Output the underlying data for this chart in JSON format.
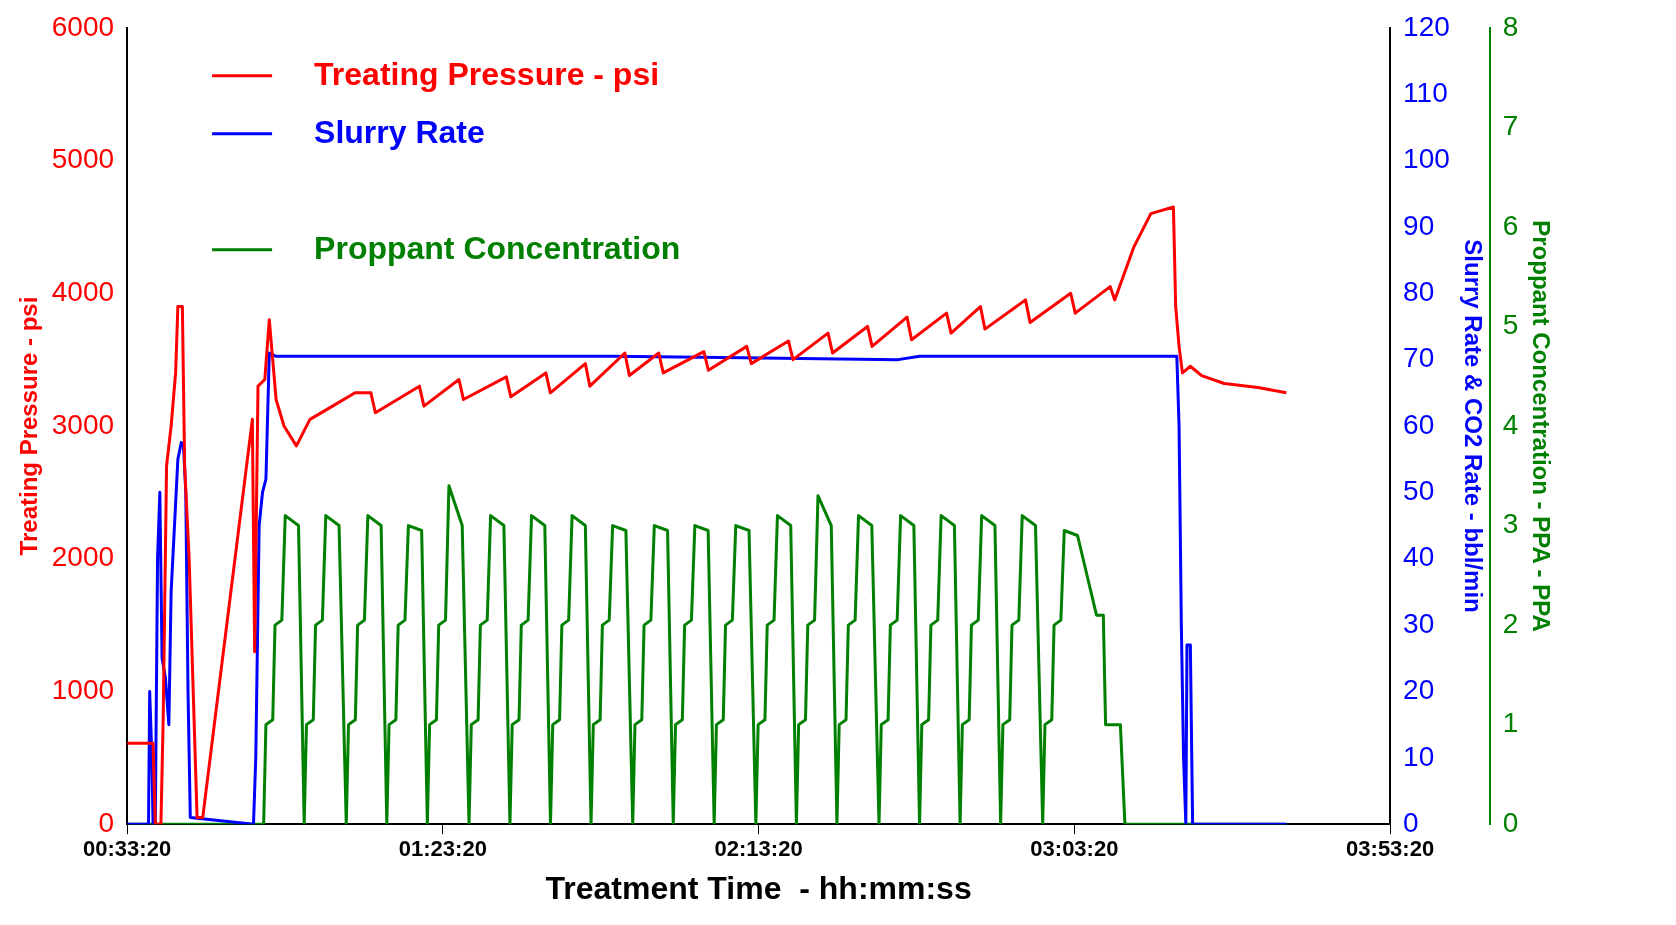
{
  "chart_data": {
    "type": "line",
    "xlabel": "Treatment Time  - hh:mm:ss",
    "ylabel": "Treating Pressure - psi",
    "y2label": "Slurry Rate & CO2 Rate - bbl/min",
    "y3label": "Proppant Concentration - PPA - PPA",
    "xlim": [
      0.5556,
      3.8889
    ],
    "xticks": [
      {
        "value": 0.5556,
        "label": "00:33:20"
      },
      {
        "value": 1.3889,
        "label": "01:23:20"
      },
      {
        "value": 2.2222,
        "label": "02:13:20"
      },
      {
        "value": 3.0556,
        "label": "03:03:20"
      },
      {
        "value": 3.8889,
        "label": "03:53:20"
      }
    ],
    "ylim": [
      0,
      6000
    ],
    "yticks": [
      0,
      1000,
      2000,
      3000,
      4000,
      5000,
      6000
    ],
    "y2lim": [
      0,
      120
    ],
    "y2ticks": [
      0,
      10,
      20,
      30,
      40,
      50,
      60,
      70,
      80,
      90,
      100,
      110,
      120
    ],
    "y3lim": [
      0,
      8
    ],
    "y3ticks": [
      0,
      1,
      2,
      3,
      4,
      5,
      6,
      7,
      8
    ],
    "grid": false,
    "legend": "top left",
    "line_style": "solid",
    "series": [
      {
        "name": "Treating Pressure - psi",
        "color": "#ff0000",
        "axis": "y",
        "x": [
          0.556,
          0.6241,
          0.63,
          0.6449,
          0.6509,
          0.6598,
          0.6718,
          0.6837,
          0.6896,
          0.7015,
          0.7075,
          0.7194,
          0.7403,
          0.7552,
          0.8862,
          0.8922,
          0.9011,
          0.919,
          0.9309,
          0.9399,
          0.9488,
          0.9697,
          1.0024,
          1.0382,
          1.0978,
          1.1573,
          1.199,
          1.2109,
          1.3271,
          1.339,
          1.4314,
          1.4433,
          1.5565,
          1.5684,
          1.6608,
          1.6727,
          1.765,
          1.7769,
          1.8693,
          1.8812,
          1.9587,
          1.9706,
          2.0778,
          2.0897,
          2.191,
          2.2029,
          2.3012,
          2.3131,
          2.4055,
          2.4174,
          2.5098,
          2.5217,
          2.614,
          2.6259,
          2.7183,
          2.7302,
          2.8077,
          2.8196,
          2.9268,
          2.9387,
          3.0459,
          3.0578,
          3.1502,
          3.1621,
          3.2128,
          3.2575,
          3.317,
          3.323,
          3.3319,
          3.3408,
          3.3617,
          3.3915,
          3.4511,
          3.5405,
          3.615
        ],
        "values": [
          610,
          610,
          0,
          0,
          800,
          2700,
          3000,
          3400,
          3900,
          3900,
          2700,
          2000,
          50,
          50,
          3050,
          1300,
          3300,
          3350,
          3800,
          3500,
          3200,
          3000,
          2850,
          3050,
          3150,
          3250,
          3250,
          3100,
          3300,
          3150,
          3350,
          3200,
          3370,
          3220,
          3400,
          3250,
          3470,
          3300,
          3550,
          3380,
          3550,
          3400,
          3560,
          3420,
          3600,
          3470,
          3640,
          3500,
          3700,
          3550,
          3750,
          3600,
          3820,
          3650,
          3850,
          3700,
          3900,
          3730,
          3950,
          3780,
          4000,
          3850,
          4050,
          3950,
          4350,
          4600,
          4650,
          3900,
          3600,
          3400,
          3450,
          3380,
          3320,
          3290,
          3250
        ]
      },
      {
        "name": "Slurry Rate",
        "color": "#0000ff",
        "axis": "y2",
        "x": [
          0.556,
          0.6122,
          0.6152,
          0.6211,
          0.6241,
          0.63,
          0.636,
          0.642,
          0.6479,
          0.6569,
          0.6658,
          0.6718,
          0.6807,
          0.6896,
          0.6986,
          0.7045,
          0.7105,
          0.7164,
          0.7224,
          0.8892,
          0.8952,
          0.9041,
          0.913,
          0.922,
          0.9309,
          0.9488,
          1.5446,
          1.8425,
          2.5906,
          2.6468,
          3.326,
          3.3319,
          3.3379,
          3.3438,
          3.3498,
          3.3528,
          3.3617,
          3.3677,
          3.615
        ],
        "values": [
          0,
          0,
          20,
          10,
          0,
          0,
          40,
          50,
          25,
          22,
          15,
          35,
          45,
          55,
          57.5,
          57,
          50,
          20,
          1,
          0,
          10,
          45,
          50,
          52,
          71,
          70.5,
          70.5,
          70.5,
          70,
          70.5,
          70.5,
          60,
          30,
          10,
          0,
          27,
          27,
          0,
          0
        ]
      },
      {
        "name": "Proppant Concentration",
        "color": "#008000",
        "axis": "y3",
        "x": [
          0.556,
          0.916,
          0.922,
          0.94,
          0.946,
          0.964,
          0.973,
          1.008,
          1.023,
          1.029,
          1.047,
          1.053,
          1.071,
          1.08,
          1.115,
          1.134,
          1.14,
          1.158,
          1.164,
          1.182,
          1.191,
          1.226,
          1.241,
          1.247,
          1.265,
          1.271,
          1.289,
          1.298,
          1.333,
          1.348,
          1.354,
          1.372,
          1.378,
          1.396,
          1.405,
          1.44,
          1.458,
          1.464,
          1.482,
          1.488,
          1.506,
          1.515,
          1.55,
          1.566,
          1.572,
          1.59,
          1.596,
          1.614,
          1.623,
          1.658,
          1.673,
          1.679,
          1.697,
          1.703,
          1.721,
          1.73,
          1.765,
          1.78,
          1.786,
          1.804,
          1.81,
          1.828,
          1.837,
          1.872,
          1.89,
          1.896,
          1.914,
          1.92,
          1.938,
          1.947,
          1.982,
          1.997,
          2.003,
          2.021,
          2.027,
          2.045,
          2.054,
          2.089,
          2.105,
          2.111,
          2.129,
          2.135,
          2.153,
          2.162,
          2.197,
          2.215,
          2.221,
          2.239,
          2.245,
          2.263,
          2.272,
          2.307,
          2.322,
          2.328,
          2.346,
          2.352,
          2.37,
          2.379,
          2.414,
          2.429,
          2.435,
          2.453,
          2.459,
          2.477,
          2.486,
          2.521,
          2.54,
          2.546,
          2.564,
          2.57,
          2.588,
          2.597,
          2.632,
          2.647,
          2.653,
          2.671,
          2.677,
          2.695,
          2.704,
          2.739,
          2.754,
          2.76,
          2.778,
          2.784,
          2.802,
          2.811,
          2.846,
          2.861,
          2.867,
          2.885,
          2.891,
          2.909,
          2.918,
          2.953,
          2.972,
          2.978,
          2.996,
          3.002,
          3.02,
          3.029,
          3.064,
          3.114,
          3.132,
          3.138,
          3.177,
          3.189,
          3.615
        ],
        "values": [
          0,
          0,
          1,
          1.05,
          2,
          2.05,
          3.1,
          3,
          0,
          1,
          1.05,
          2,
          2.05,
          3.1,
          3,
          0,
          1,
          1.05,
          2,
          2.05,
          3.1,
          3,
          0,
          1,
          1.05,
          2,
          2.05,
          3,
          2.95,
          0,
          1,
          1.05,
          2,
          2.05,
          3.4,
          3,
          0,
          1,
          1.05,
          2,
          2.05,
          3.1,
          3,
          0,
          1,
          1.05,
          2,
          2.05,
          3.1,
          3,
          0,
          1,
          1.05,
          2,
          2.05,
          3.1,
          3,
          0,
          1,
          1.05,
          2,
          2.05,
          3,
          2.95,
          0,
          1,
          1.05,
          2,
          2.05,
          3,
          2.95,
          0,
          1,
          1.05,
          2,
          2.05,
          3,
          2.95,
          0,
          1,
          1.05,
          2,
          2.05,
          3,
          2.95,
          0,
          1,
          1.05,
          2,
          2.05,
          3.1,
          3,
          0,
          1,
          1.05,
          2,
          2.05,
          3.3,
          3,
          0,
          1,
          1.05,
          2,
          2.05,
          3.1,
          3,
          0,
          1,
          1.05,
          2,
          2.05,
          3.1,
          3,
          0,
          1,
          1.05,
          2,
          2.05,
          3.1,
          3,
          0,
          1,
          1.05,
          2,
          2.05,
          3.1,
          3,
          0,
          1,
          1.05,
          2,
          2.05,
          3.1,
          3,
          0,
          1,
          1.05,
          2,
          2.05,
          2.95,
          2.9,
          2.1,
          2.1,
          1,
          1,
          0,
          0
        ]
      }
    ]
  }
}
